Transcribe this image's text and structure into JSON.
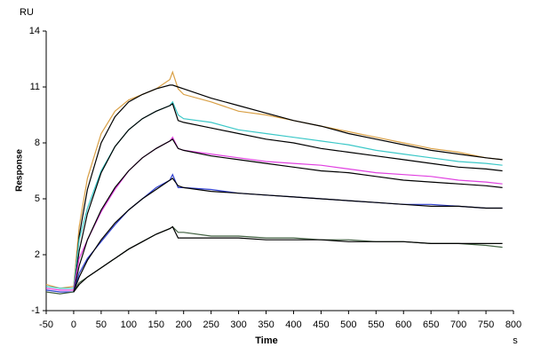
{
  "chart_data": {
    "type": "line",
    "y_unit": "RU",
    "y_label": "Response",
    "x_label": "Time",
    "x_unit": "s",
    "x": [
      -50,
      -25,
      0,
      10,
      25,
      50,
      75,
      100,
      125,
      150,
      175,
      180,
      190,
      200,
      250,
      300,
      350,
      400,
      450,
      500,
      550,
      600,
      650,
      700,
      750,
      780
    ],
    "series": [
      {
        "color": "#d9a046",
        "values": [
          0.4,
          0.2,
          0.3,
          3.5,
          6.1,
          8.5,
          9.7,
          10.3,
          10.6,
          10.9,
          11.4,
          11.8,
          10.9,
          10.6,
          10.2,
          9.7,
          9.5,
          9.2,
          8.9,
          8.6,
          8.3,
          8.0,
          7.7,
          7.5,
          7.2,
          7.1
        ]
      },
      {
        "color": "#000000",
        "values": [
          null,
          null,
          0.0,
          3.0,
          5.5,
          8.0,
          9.4,
          10.2,
          10.6,
          10.9,
          11.1,
          11.1,
          11.0,
          10.9,
          10.4,
          10.0,
          9.6,
          9.2,
          8.9,
          8.5,
          8.2,
          7.9,
          7.6,
          7.4,
          7.2,
          7.1
        ]
      },
      {
        "color": "#3cc8c8",
        "values": [
          0.3,
          0.2,
          0.2,
          2.8,
          4.5,
          6.5,
          7.8,
          8.7,
          9.3,
          9.7,
          10.0,
          10.2,
          9.5,
          9.3,
          9.1,
          8.7,
          8.5,
          8.3,
          8.1,
          7.9,
          7.6,
          7.4,
          7.2,
          7.0,
          6.9,
          6.8
        ]
      },
      {
        "color": "#000000",
        "values": [
          null,
          null,
          0.0,
          2.2,
          4.2,
          6.4,
          7.8,
          8.7,
          9.3,
          9.7,
          10.0,
          10.1,
          9.2,
          9.1,
          8.8,
          8.5,
          8.2,
          8.0,
          7.7,
          7.5,
          7.3,
          7.1,
          6.9,
          6.7,
          6.6,
          6.5
        ]
      },
      {
        "color": "#e040e0",
        "values": [
          0.2,
          0.1,
          0.1,
          1.8,
          2.8,
          4.3,
          5.5,
          6.5,
          7.2,
          7.7,
          8.1,
          8.3,
          7.7,
          7.6,
          7.4,
          7.2,
          7.0,
          6.9,
          6.8,
          6.6,
          6.4,
          6.3,
          6.2,
          6.0,
          5.9,
          5.8
        ]
      },
      {
        "color": "#000000",
        "values": [
          null,
          null,
          0.0,
          1.4,
          2.8,
          4.4,
          5.6,
          6.5,
          7.2,
          7.7,
          8.1,
          8.2,
          7.7,
          7.6,
          7.3,
          7.1,
          6.9,
          6.7,
          6.5,
          6.4,
          6.2,
          6.0,
          5.9,
          5.8,
          5.7,
          5.6
        ]
      },
      {
        "color": "#3040d0",
        "values": [
          0.1,
          0.0,
          0.0,
          1.0,
          1.8,
          2.7,
          3.6,
          4.4,
          5.0,
          5.6,
          6.0,
          6.3,
          5.6,
          5.6,
          5.5,
          5.3,
          5.2,
          5.1,
          5.0,
          4.9,
          4.8,
          4.7,
          4.7,
          4.6,
          4.5,
          4.5
        ]
      },
      {
        "color": "#000000",
        "values": [
          null,
          null,
          0.0,
          0.8,
          1.7,
          2.8,
          3.7,
          4.4,
          5.0,
          5.5,
          6.0,
          6.1,
          5.7,
          5.6,
          5.4,
          5.3,
          5.2,
          5.1,
          5.0,
          4.9,
          4.8,
          4.7,
          4.6,
          4.6,
          4.5,
          4.5
        ]
      },
      {
        "color": "#406040",
        "values": [
          0.0,
          -0.1,
          0.0,
          0.5,
          0.8,
          1.3,
          1.8,
          2.3,
          2.7,
          3.1,
          3.4,
          3.5,
          3.2,
          3.2,
          3.0,
          3.0,
          2.9,
          2.9,
          2.8,
          2.8,
          2.7,
          2.7,
          2.6,
          2.6,
          2.5,
          2.4
        ]
      },
      {
        "color": "#000000",
        "values": [
          null,
          null,
          0.0,
          0.4,
          0.8,
          1.3,
          1.8,
          2.3,
          2.7,
          3.1,
          3.4,
          3.5,
          2.9,
          2.9,
          2.9,
          2.9,
          2.8,
          2.8,
          2.8,
          2.7,
          2.7,
          2.7,
          2.6,
          2.6,
          2.6,
          2.6
        ]
      }
    ],
    "xlim": [
      -50,
      800
    ],
    "xticks": [
      -50,
      0,
      50,
      100,
      150,
      200,
      250,
      300,
      350,
      400,
      450,
      500,
      550,
      600,
      650,
      700,
      750,
      800
    ],
    "ylim": [
      -1,
      14
    ],
    "yticks": [
      -1,
      2,
      5,
      8,
      11,
      14
    ],
    "grid": false
  }
}
